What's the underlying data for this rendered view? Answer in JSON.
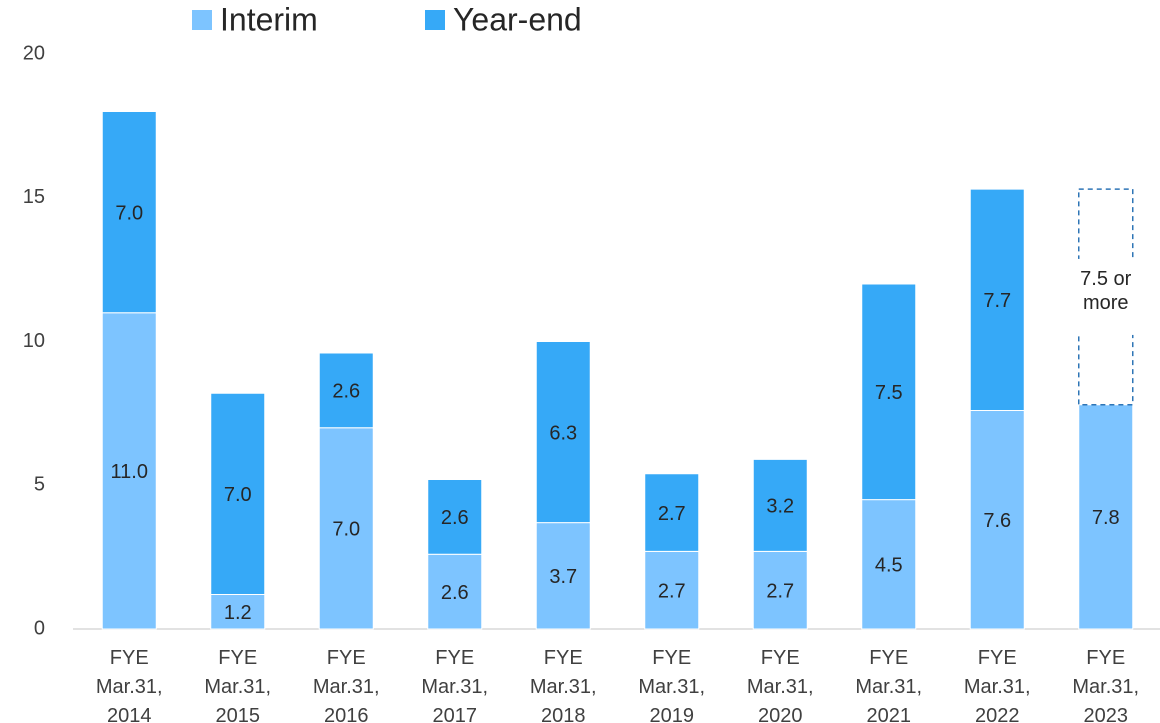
{
  "chart_data": {
    "type": "stacked_bar",
    "categories": [
      [
        "FYE",
        "Mar.31,",
        "2014"
      ],
      [
        "FYE",
        "Mar.31,",
        "2015"
      ],
      [
        "FYE",
        "Mar.31,",
        "2016"
      ],
      [
        "FYE",
        "Mar.31,",
        "2017"
      ],
      [
        "FYE",
        "Mar.31,",
        "2018"
      ],
      [
        "FYE",
        "Mar.31,",
        "2019"
      ],
      [
        "FYE",
        "Mar.31,",
        "2020"
      ],
      [
        "FYE",
        "Mar.31,",
        "2021"
      ],
      [
        "FYE",
        "Mar.31,",
        "2022"
      ],
      [
        "FYE",
        "Mar.31,",
        "2023"
      ]
    ],
    "series": [
      {
        "name": "Interim",
        "color": "#7dc4ff",
        "values": [
          11.0,
          1.2,
          7.0,
          2.6,
          3.7,
          2.7,
          2.7,
          4.5,
          7.6,
          7.8
        ],
        "value_labels": [
          "11.0",
          "1.2",
          "7.0",
          "2.6",
          "3.7",
          "2.7",
          "2.7",
          "4.5",
          "7.6",
          "7.8"
        ]
      },
      {
        "name": "Year-end",
        "color": "#36a9f7",
        "values": [
          7.0,
          7.0,
          2.6,
          2.6,
          6.3,
          2.7,
          3.2,
          7.5,
          7.7,
          7.5
        ],
        "value_labels": [
          "7.0",
          "7.0",
          "2.6",
          "2.6",
          "6.3",
          "2.7",
          "3.2",
          "7.5",
          "7.7",
          "7.5 or more"
        ],
        "forecast_color": "#2e75b6"
      }
    ],
    "ylim": [
      0,
      20
    ],
    "yticks": [
      0,
      5,
      10,
      15,
      20
    ],
    "grid": false,
    "legend": "top"
  }
}
